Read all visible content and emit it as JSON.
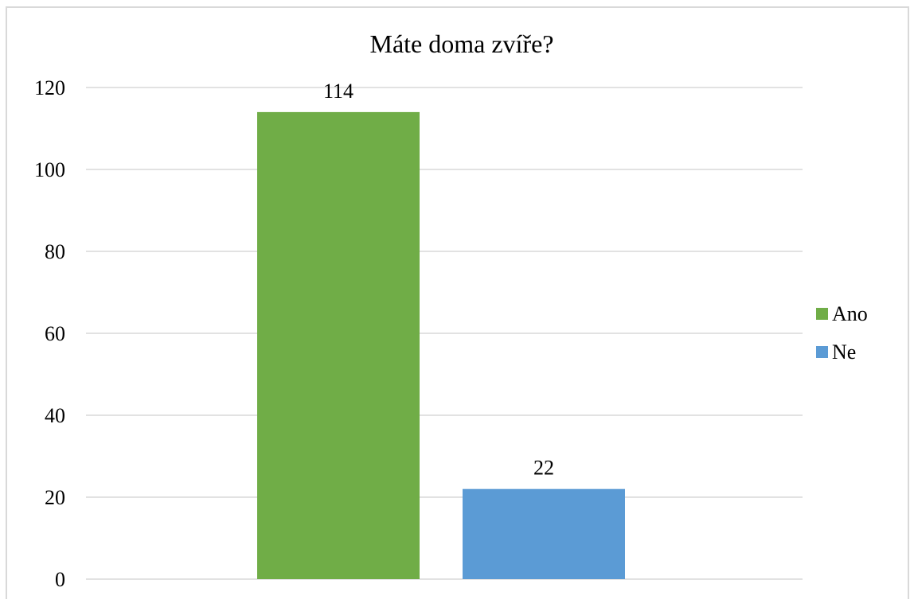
{
  "chart_data": {
    "type": "bar",
    "title": "Máte doma zvíře?",
    "xlabel": "",
    "ylabel": "",
    "ylim": [
      0,
      120
    ],
    "yticks": [
      0,
      20,
      40,
      60,
      80,
      100,
      120
    ],
    "grid": true,
    "legend_position": "right",
    "series": [
      {
        "name": "Ano",
        "value": 114,
        "label": "114",
        "color": "#70ad47"
      },
      {
        "name": "Ne",
        "value": 22,
        "label": "22",
        "color": "#5b9bd5"
      }
    ]
  }
}
